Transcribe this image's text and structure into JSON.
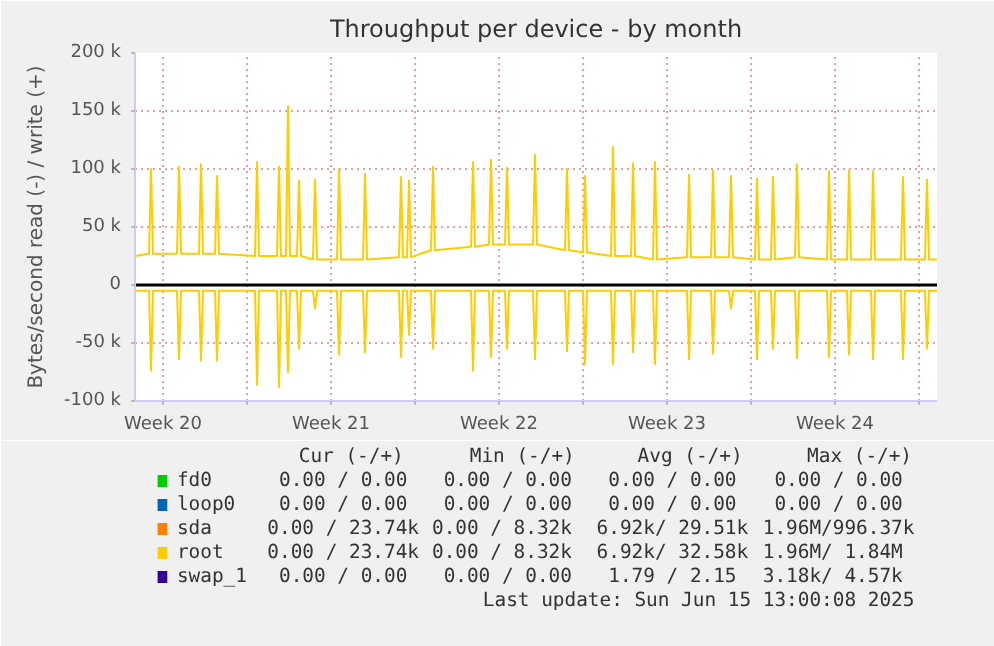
{
  "chart_data": {
    "type": "line",
    "title": "Throughput per device - by month",
    "ylabel": "Bytes/second read (-) / write (+)",
    "x": [
      "2025-05-13T03:00",
      "2025-05-13T17:00",
      "2025-05-13T19:00",
      "2025-05-13T21:00",
      "2025-05-14T21:00",
      "2025-05-14T23:00",
      "2025-05-15T01:00",
      "2025-05-15T19:00",
      "2025-05-15T21:00",
      "2025-05-15T23:00",
      "2025-05-16T11:00",
      "2025-05-16T13:00",
      "2025-05-16T15:00",
      "2025-05-18T03:00",
      "2025-05-18T05:00",
      "2025-05-18T07:00",
      "2025-05-19T01:00",
      "2025-05-19T03:00",
      "2025-05-19T05:00",
      "2025-05-19T10:00",
      "2025-05-19T12:00",
      "2025-05-19T14:00",
      "2025-05-19T21:00",
      "2025-05-19T23:00",
      "2025-05-20T01:00",
      "2025-05-20T13:00",
      "2025-05-20T15:00",
      "2025-05-20T17:00",
      "2025-05-21T13:00",
      "2025-05-21T15:00",
      "2025-05-21T17:00",
      "2025-05-22T15:00",
      "2025-05-22T17:00",
      "2025-05-22T19:00",
      "2025-05-24T03:00",
      "2025-05-24T05:00",
      "2025-05-24T07:00",
      "2025-05-24T11:00",
      "2025-05-24T13:00",
      "2025-05-24T15:00",
      "2025-05-25T11:00",
      "2025-05-25T13:00",
      "2025-05-25T15:00",
      "2025-05-27T03:00",
      "2025-05-27T05:00",
      "2025-05-27T07:00",
      "2025-05-27T21:00",
      "2025-05-27T23:00",
      "2025-05-28T01:00",
      "2025-05-28T13:00",
      "2025-05-28T15:00",
      "2025-05-28T17:00",
      "2025-05-29T17:00",
      "2025-05-29T19:00",
      "2025-05-29T21:00",
      "2025-05-31T01:00",
      "2025-05-31T03:00",
      "2025-05-31T05:00",
      "2025-05-31T19:00",
      "2025-05-31T21:00",
      "2025-05-31T23:00",
      "2025-06-01T23:00",
      "2025-06-02T01:00",
      "2025-06-02T03:00",
      "2025-06-02T19:00",
      "2025-06-02T21:00",
      "2025-06-02T23:00",
      "2025-06-03T17:00",
      "2025-06-03T19:00",
      "2025-06-03T21:00",
      "2025-06-05T03:00",
      "2025-06-05T05:00",
      "2025-06-05T07:00",
      "2025-06-06T03:00",
      "2025-06-06T05:00",
      "2025-06-06T07:00",
      "2025-06-06T21:00",
      "2025-06-06T23:00",
      "2025-06-07T01:00",
      "2025-06-07T23:00",
      "2025-06-08T01:00",
      "2025-06-08T03:00",
      "2025-06-08T15:00",
      "2025-06-08T17:00",
      "2025-06-08T19:00",
      "2025-06-09T15:00",
      "2025-06-09T17:00",
      "2025-06-09T19:00",
      "2025-06-10T23:00",
      "2025-06-11T01:00",
      "2025-06-11T03:00",
      "2025-06-11T19:00",
      "2025-06-11T21:00",
      "2025-06-11T23:00",
      "2025-06-12T19:00",
      "2025-06-12T21:00",
      "2025-06-12T23:00",
      "2025-06-14T01:00",
      "2025-06-14T03:00",
      "2025-06-14T05:00",
      "2025-06-15T01:00",
      "2025-06-15T03:00",
      "2025-06-15T05:00",
      "2025-06-15T13:00"
    ],
    "series": [
      {
        "name": "fd0",
        "color": "#00cc00",
        "values": [
          null,
          null,
          null,
          null,
          null,
          null,
          null,
          null,
          null,
          null,
          null,
          null,
          null,
          null,
          null,
          null,
          null,
          null,
          null,
          null,
          null,
          null,
          null,
          null,
          null,
          null,
          null,
          null,
          null,
          null,
          null,
          null,
          null,
          null,
          null,
          null,
          null,
          null,
          null,
          null,
          null,
          null,
          null,
          null,
          null,
          null,
          null,
          null,
          null,
          null,
          null,
          null,
          null,
          null,
          null,
          null,
          null,
          null,
          null,
          null,
          null,
          null,
          null,
          null,
          null,
          null,
          null,
          null,
          null,
          null,
          null,
          null,
          null,
          null,
          null,
          null,
          null,
          null,
          null,
          null,
          null,
          null,
          null,
          null,
          null,
          null,
          null,
          null,
          null,
          null,
          null,
          null,
          null,
          null,
          null,
          null,
          null,
          null,
          null,
          null,
          null,
          null,
          null,
          null
        ]
      },
      {
        "name": "loop0",
        "color": "#0066b3",
        "values": [
          null,
          null,
          null,
          null,
          null,
          null,
          null,
          null,
          null,
          null,
          null,
          null,
          null,
          null,
          null,
          null,
          null,
          null,
          null,
          null,
          null,
          null,
          null,
          null,
          null,
          null,
          null,
          null,
          null,
          null,
          null,
          null,
          null,
          null,
          null,
          null,
          null,
          null,
          null,
          null,
          null,
          null,
          null,
          null,
          null,
          null,
          null,
          null,
          null,
          null,
          null,
          null,
          null,
          null,
          null,
          null,
          null,
          null,
          null,
          null,
          null,
          null,
          null,
          null,
          null,
          null,
          null,
          null,
          null,
          null,
          null,
          null,
          null,
          null,
          null,
          null,
          null,
          null,
          null,
          null,
          null,
          null,
          null,
          null,
          null,
          null,
          null,
          null,
          null,
          null,
          null,
          null,
          null,
          null,
          null,
          null,
          null,
          null,
          null,
          null,
          null,
          null,
          null,
          null
        ]
      },
      {
        "name": "sda",
        "color": "#ff8000",
        "values": [
          null,
          null,
          null,
          null,
          null,
          null,
          null,
          null,
          null,
          null,
          null,
          null,
          null,
          null,
          null,
          null,
          null,
          null,
          null,
          null,
          null,
          null,
          null,
          null,
          null,
          null,
          null,
          null,
          null,
          null,
          null,
          null,
          null,
          null,
          null,
          null,
          null,
          null,
          null,
          null,
          null,
          null,
          null,
          null,
          null,
          null,
          null,
          null,
          null,
          null,
          null,
          null,
          null,
          null,
          null,
          null,
          null,
          null,
          null,
          null,
          null,
          null,
          null,
          null,
          null,
          null,
          null,
          null,
          null,
          null,
          null,
          null,
          null,
          null,
          null,
          null,
          null,
          null,
          null,
          null,
          null,
          null,
          null,
          null,
          null,
          null,
          null,
          null,
          null,
          null,
          null,
          null,
          null,
          null,
          null,
          null,
          null,
          null,
          null,
          null,
          null,
          null,
          null,
          null
        ]
      },
      {
        "name": "root",
        "color": "#ffcc00",
        "values": [
          25000,
          27000,
          100000,
          27000,
          27000,
          102000,
          27000,
          27000,
          104000,
          27000,
          27000,
          94000,
          27000,
          25000,
          106000,
          25000,
          25000,
          102000,
          25000,
          25000,
          154000,
          25000,
          25000,
          90000,
          25000,
          22000,
          91000,
          22000,
          22000,
          100000,
          22000,
          22000,
          96000,
          22000,
          24000,
          93000,
          24000,
          24000,
          90000,
          24000,
          30000,
          102000,
          30000,
          33000,
          106000,
          33000,
          35000,
          108000,
          35000,
          35000,
          101000,
          35000,
          35000,
          112000,
          35000,
          30000,
          100000,
          30000,
          28000,
          94000,
          28000,
          25000,
          119000,
          25000,
          25000,
          105000,
          25000,
          22000,
          106000,
          22000,
          24000,
          95000,
          24000,
          24000,
          99000,
          24000,
          24000,
          94000,
          24000,
          22000,
          92000,
          22000,
          22000,
          93000,
          22000,
          24000,
          104000,
          24000,
          22000,
          98000,
          22000,
          22000,
          99000,
          22000,
          22000,
          98000,
          22000,
          22000,
          93000,
          22000,
          22000,
          91000,
          22000,
          22000
        ]
      },
      {
        "color": "#ffcc00",
        "values": [
          -5000,
          -5000,
          -74000,
          -5000,
          -5000,
          -64000,
          -5000,
          -5000,
          -65000,
          -5000,
          -5000,
          -65000,
          -5000,
          -5000,
          -86000,
          -5000,
          -5000,
          -88000,
          -5000,
          -5000,
          -75000,
          -5000,
          -5000,
          -55000,
          -5000,
          -5000,
          -20000,
          -5000,
          -5000,
          -60000,
          -5000,
          -5000,
          -58000,
          -5000,
          -5000,
          -62000,
          -5000,
          -5000,
          -43000,
          -5000,
          -5000,
          -55000,
          -5000,
          -5000,
          -74000,
          -5000,
          -5000,
          -62000,
          -5000,
          -5000,
          -55000,
          -5000,
          -5000,
          -64000,
          -5000,
          -5000,
          -57000,
          -5000,
          -5000,
          -68000,
          -5000,
          -5000,
          -68000,
          -5000,
          -5000,
          -58000,
          -5000,
          -5000,
          -68000,
          -5000,
          -5000,
          -64000,
          -5000,
          -5000,
          -59000,
          -5000,
          -5000,
          -20000,
          -5000,
          -5000,
          -64000,
          -5000,
          -5000,
          -55000,
          -5000,
          -5000,
          -63000,
          -5000,
          -5000,
          -62000,
          -5000,
          -5000,
          -60000,
          -5000,
          -5000,
          -64000,
          -5000,
          -5000,
          -64000,
          -5000,
          -5000,
          -55000,
          -5000,
          -5000
        ]
      },
      {
        "name": "swap_1",
        "color": "#330099",
        "values": [
          null,
          null,
          null,
          null,
          null,
          null,
          null,
          null,
          null,
          null,
          null,
          null,
          null,
          null,
          null,
          null,
          null,
          null,
          null,
          null,
          null,
          null,
          null,
          null,
          null,
          null,
          null,
          null,
          null,
          null,
          null,
          null,
          null,
          null,
          null,
          null,
          null,
          null,
          null,
          null,
          null,
          null,
          null,
          null,
          null,
          null,
          null,
          null,
          null,
          null,
          null,
          null,
          null,
          null,
          null,
          null,
          null,
          null,
          null,
          null,
          null,
          null,
          null,
          null,
          null,
          null,
          null,
          null,
          null,
          null,
          null,
          null,
          null,
          null,
          null,
          null,
          null,
          null,
          null,
          null,
          null,
          null,
          null,
          null,
          null,
          null,
          null,
          null,
          null,
          null,
          null,
          null,
          null,
          null,
          null,
          null,
          null,
          null,
          null,
          null,
          null,
          null,
          null,
          null
        ]
      }
    ],
    "xlim": [
      "2025-05-13T03:00",
      "2025-06-15T13:00"
    ],
    "xticks": [
      {
        "value": "2025-05-14T07:00",
        "label": "Week 20"
      },
      {
        "value": "2025-05-17T19:00",
        "label": null
      },
      {
        "value": "2025-05-21T07:00",
        "label": "Week 21"
      },
      {
        "value": "2025-05-24T19:00",
        "label": null
      },
      {
        "value": "2025-05-28T07:00",
        "label": "Week 22"
      },
      {
        "value": "2025-05-31T19:00",
        "label": null
      },
      {
        "value": "2025-06-04T07:00",
        "label": "Week 23"
      },
      {
        "value": "2025-06-07T19:00",
        "label": null
      },
      {
        "value": "2025-06-11T07:00",
        "label": "Week 24"
      },
      {
        "value": "2025-06-14T19:00",
        "label": null
      }
    ],
    "ylim": [
      -100000,
      200000
    ],
    "yticks": [
      {
        "value": -100000,
        "label": "-100 k"
      },
      {
        "value": -50000,
        "label": "-50 k"
      },
      0,
      {
        "value": 50000,
        "label": "50 k"
      },
      {
        "value": 100000,
        "label": "100 k"
      },
      {
        "value": 150000,
        "label": "150 k"
      },
      {
        "value": 200000,
        "label": "200 k"
      }
    ],
    "ref_lines": [
      {
        "axis": "y",
        "value": 0,
        "color": "#000000"
      }
    ],
    "grid": true,
    "legend": "bottom",
    "annotations": [
      "Cur (-/+)",
      "Min (-/+)",
      "Avg (-/+)",
      "Max (-/+)",
      "0.00 /  0.00",
      "0.00 /  0.00",
      "0.00 /  0.00",
      "0.00 /  0.00",
      "0.00 /  0.00",
      "0.00 /  0.00",
      "0.00 /  0.00",
      "0.00 /  0.00",
      "0.00 / 23.74k",
      "0.00 /  8.32k",
      "6.92k/ 29.51k",
      "1.96M/996.37k",
      "0.00 / 23.74k",
      "0.00 /  8.32k",
      "6.92k/ 32.58k",
      "1.96M/  1.84M",
      "0.00 /  0.00",
      "0.00 /  0.00",
      "1.79 /  2.15",
      "3.18k/  4.57k",
      "Last update: Sun Jun 15 13:00:08 2025"
    ]
  }
}
